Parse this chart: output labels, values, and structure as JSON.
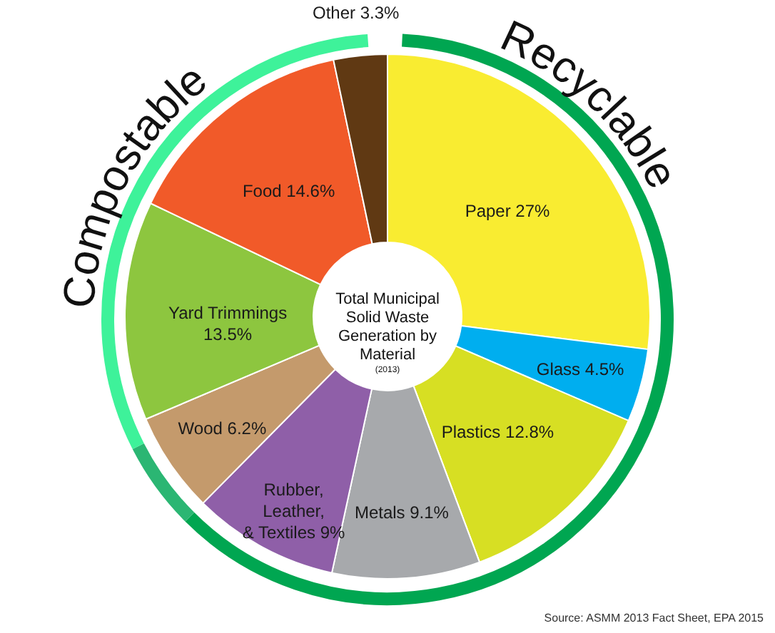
{
  "chart_data": {
    "type": "donut",
    "title": "Total Municipal Solid Waste Generation by Material",
    "subtitle": "(2013)",
    "categories": [
      "Paper",
      "Glass",
      "Plastics",
      "Metals",
      "Rubber, Leather, & Textiles",
      "Wood",
      "Yard Trimmings",
      "Food",
      "Other"
    ],
    "values": [
      27,
      4.5,
      12.8,
      9.1,
      9,
      6.2,
      13.5,
      14.6,
      3.3
    ],
    "value_labels": [
      "27%",
      "4.5%",
      "12.8%",
      "9.1%",
      "9%",
      "6.2%",
      "13.5%",
      "14.6%",
      "3.3%"
    ],
    "colors": [
      "#f9ec31",
      "#00aeef",
      "#d7df23",
      "#a7a9ac",
      "#8f5fa8",
      "#c49a6c",
      "#8dc63f",
      "#f15a29",
      "#603913"
    ],
    "annotations": [
      "Recyclable",
      "Compostable",
      "Source: ASMM 2013 Fact Sheet, EPA 2015"
    ]
  }
}
